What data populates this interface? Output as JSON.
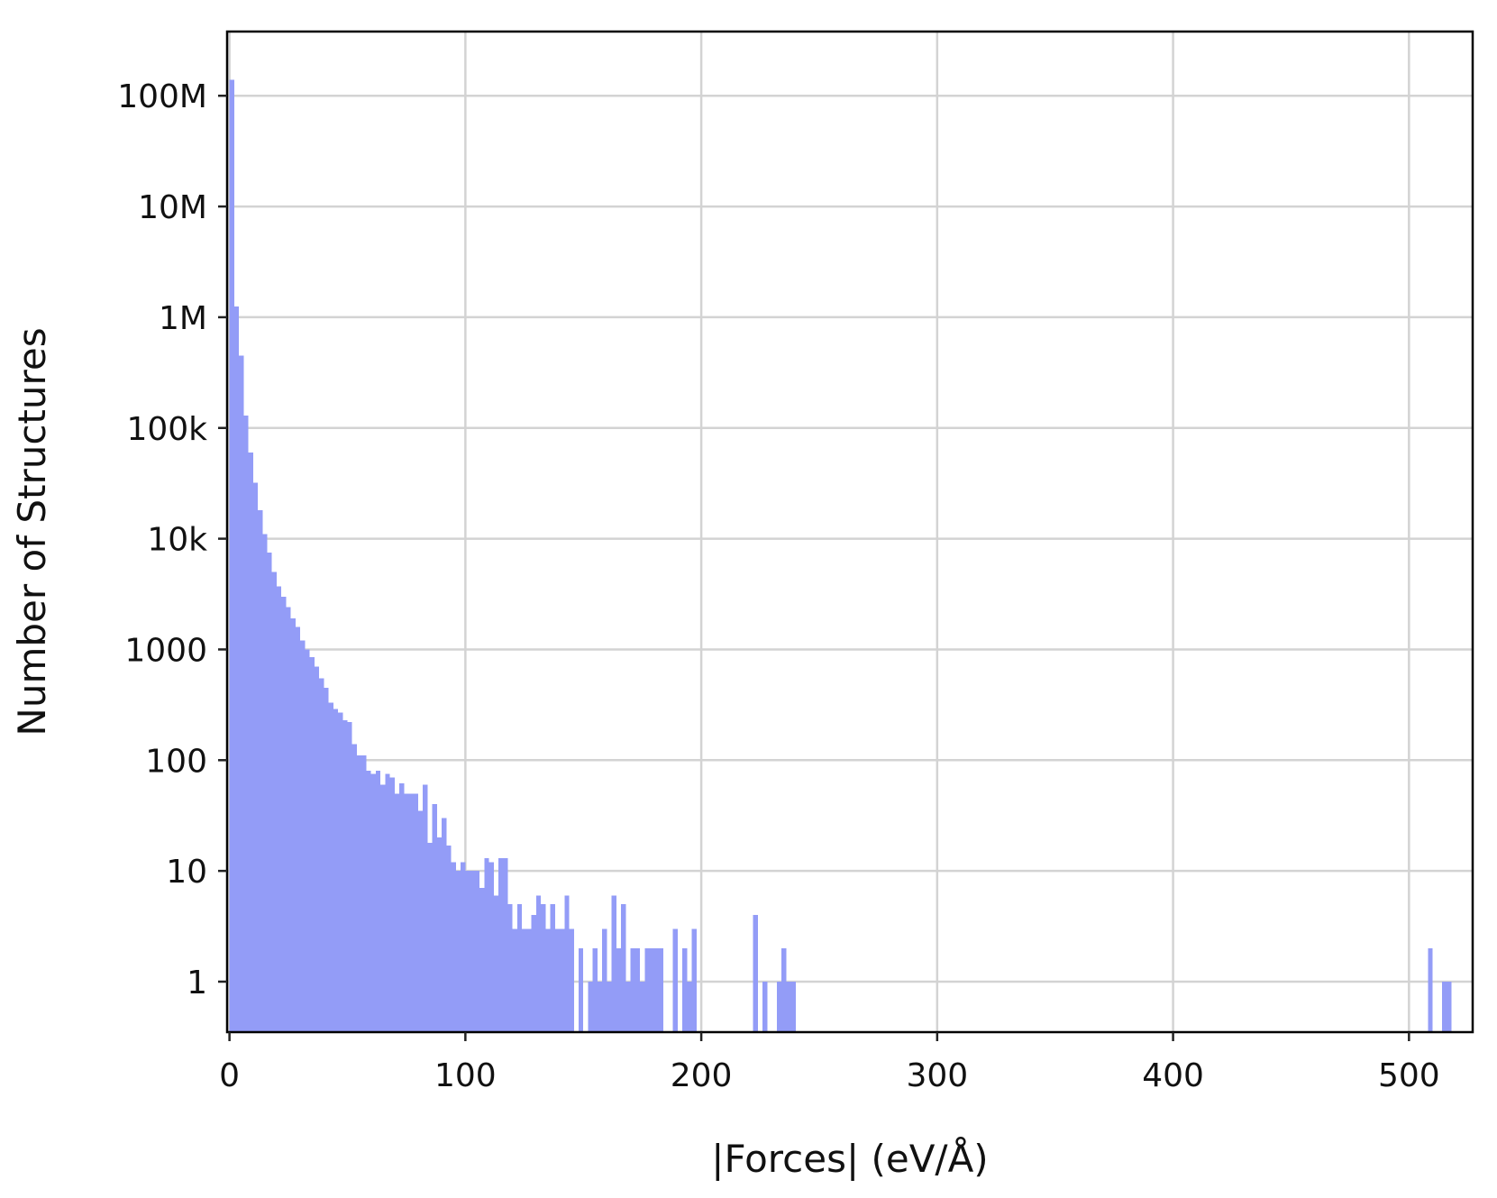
{
  "chart_data": {
    "type": "bar",
    "title": "",
    "xlabel": "|Forces| (eV/Å)",
    "ylabel": "Number of Structures",
    "xlim": [
      -1,
      527
    ],
    "ylim": [
      0.35,
      380000000
    ],
    "y_scale": "log",
    "grid": true,
    "bar_color": "#939cf7",
    "bin_width": 2,
    "x_ticks": [
      0,
      100,
      200,
      300,
      400,
      500
    ],
    "x_tick_labels": [
      "0",
      "100",
      "200",
      "300",
      "400",
      "500"
    ],
    "y_ticks": [
      1,
      10,
      100,
      1000,
      10000,
      100000,
      1000000,
      10000000,
      100000000
    ],
    "y_tick_labels": [
      "1",
      "10",
      "100",
      "1000",
      "10k",
      "100k",
      "1M",
      "10M",
      "100M"
    ],
    "bins_start": [
      0,
      2,
      4,
      6,
      8,
      10,
      12,
      14,
      16,
      18,
      20,
      22,
      24,
      26,
      28,
      30,
      32,
      34,
      36,
      38,
      40,
      42,
      44,
      46,
      48,
      50,
      52,
      54,
      56,
      58,
      60,
      62,
      64,
      66,
      68,
      70,
      72,
      74,
      76,
      78,
      80,
      82,
      84,
      86,
      88,
      90,
      92,
      94,
      96,
      98,
      100,
      102,
      104,
      106,
      108,
      110,
      112,
      114,
      116,
      118,
      120,
      122,
      124,
      126,
      128,
      130,
      132,
      134,
      136,
      138,
      140,
      142,
      144,
      146,
      148,
      150,
      152,
      154,
      156,
      158,
      160,
      162,
      164,
      166,
      168,
      170,
      172,
      174,
      176,
      178,
      180,
      182,
      184,
      186,
      188,
      190,
      192,
      194,
      196,
      198,
      200,
      202,
      204,
      206,
      208,
      210,
      212,
      214,
      216,
      218,
      220,
      222,
      224,
      226,
      228,
      230,
      232,
      234,
      236,
      238,
      240,
      242,
      244,
      246,
      248,
      250,
      252,
      254,
      256,
      258,
      260,
      262,
      264,
      266,
      268,
      270,
      272,
      274,
      276,
      278,
      280,
      282,
      284,
      286,
      288,
      290,
      292,
      294,
      296,
      298,
      300,
      302,
      304,
      306,
      308,
      310,
      312,
      314,
      316,
      318,
      320,
      322,
      324,
      326,
      328,
      330,
      332,
      334,
      336,
      338,
      340,
      342,
      344,
      346,
      348,
      350,
      352,
      354,
      356,
      358,
      360,
      362,
      364,
      366,
      368,
      370,
      372,
      374,
      376,
      378,
      380,
      382,
      384,
      386,
      388,
      390,
      392,
      394,
      396,
      398,
      400,
      402,
      404,
      406,
      408,
      410,
      412,
      414,
      416,
      418,
      420,
      422,
      424,
      426,
      428,
      430,
      432,
      434,
      436,
      438,
      440,
      442,
      444,
      446,
      448,
      450,
      452,
      454,
      456,
      458,
      460,
      462,
      464,
      466,
      468,
      470,
      472,
      474,
      476,
      478,
      480,
      482,
      484,
      486,
      488,
      490,
      492,
      494,
      496,
      498,
      500,
      502,
      504,
      506,
      508,
      510,
      512,
      514,
      516,
      518,
      520,
      522,
      524
    ],
    "counts": [
      140000000,
      1250000,
      450000,
      130000,
      60000,
      32000,
      18000,
      11000,
      7500,
      5000,
      3700,
      3000,
      2400,
      1900,
      1600,
      1200,
      1000,
      850,
      700,
      550,
      450,
      330,
      290,
      270,
      230,
      220,
      140,
      110,
      110,
      80,
      75,
      80,
      60,
      75,
      70,
      50,
      62,
      50,
      50,
      50,
      35,
      60,
      18,
      40,
      20,
      30,
      17,
      12,
      10,
      12,
      10,
      10,
      10,
      7,
      13,
      12,
      6,
      13,
      13,
      5,
      3,
      5,
      3,
      3,
      4,
      6,
      5,
      3,
      5,
      3,
      3,
      6,
      3,
      0,
      2,
      0,
      1,
      2,
      1,
      3,
      1,
      6,
      2,
      5,
      1,
      2,
      2,
      1,
      2,
      2,
      2,
      2,
      0,
      0,
      3,
      0,
      2,
      1,
      3,
      0,
      0,
      0,
      0,
      0,
      0,
      0,
      0,
      0,
      0,
      0,
      0,
      4,
      0,
      1,
      0,
      0,
      1,
      2,
      1,
      1,
      0,
      0,
      0,
      0,
      0,
      0,
      0,
      0,
      0,
      0,
      0,
      0,
      0,
      0,
      0,
      0,
      0,
      0,
      0,
      0,
      0,
      0,
      0,
      0,
      0,
      0,
      0,
      0,
      0,
      0,
      0,
      0,
      0,
      0,
      0,
      0,
      0,
      0,
      0,
      0,
      0,
      0,
      0,
      0,
      0,
      0,
      0,
      0,
      0,
      0,
      0,
      0,
      0,
      0,
      0,
      0,
      0,
      0,
      0,
      0,
      0,
      0,
      0,
      0,
      0,
      0,
      0,
      0,
      0,
      0,
      0,
      0,
      0,
      0,
      0,
      0,
      0,
      0,
      0,
      0,
      0,
      0,
      0,
      0,
      0,
      0,
      0,
      0,
      0,
      0,
      0,
      0,
      0,
      0,
      0,
      0,
      0,
      0,
      0,
      0,
      0,
      0,
      0,
      0,
      0,
      0,
      0,
      0,
      0,
      0,
      0,
      0,
      0,
      0,
      0,
      0,
      0,
      0,
      0,
      0,
      0,
      0,
      0,
      0,
      0,
      0,
      0,
      0,
      0,
      0,
      0,
      0,
      0,
      0,
      2,
      0,
      0,
      1,
      1
    ]
  }
}
